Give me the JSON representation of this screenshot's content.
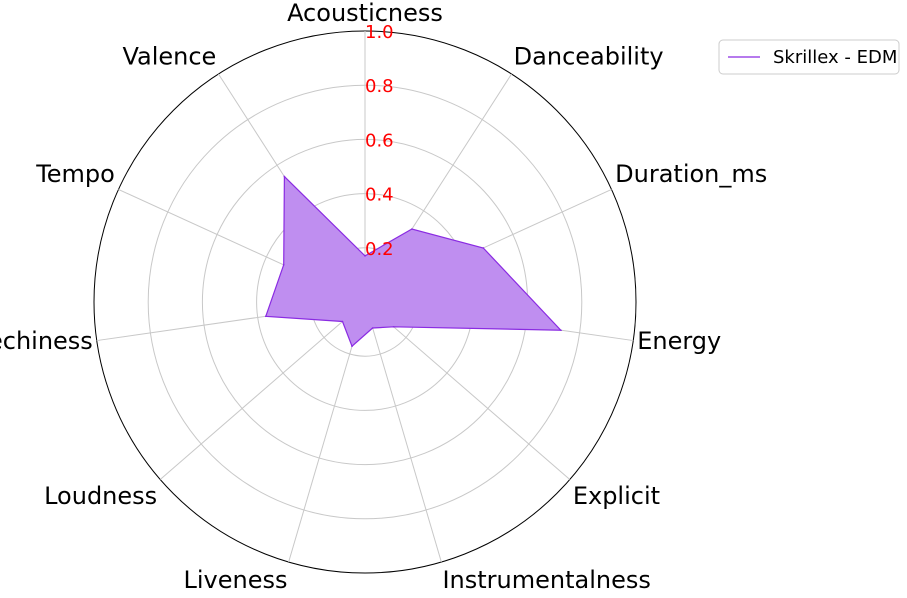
{
  "chart_data": {
    "type": "radar",
    "axes": [
      "Acousticness",
      "Danceability",
      "Duration_ms",
      "Energy",
      "Explicit",
      "Instrumentalness",
      "Liveness",
      "Loudness",
      "Speechiness",
      "Tempo",
      "Valence"
    ],
    "series": [
      {
        "name": "Skrillex - EDM",
        "values": [
          0.17,
          0.32,
          0.48,
          0.73,
          0.14,
          0.1,
          0.17,
          0.11,
          0.37,
          0.33,
          0.55
        ],
        "color": "#8a2be2",
        "fill": "#bf8ef0"
      }
    ],
    "rlim": [
      0,
      1.0
    ],
    "ticks": [
      "0.2",
      "0.4",
      "0.6",
      "0.8",
      "1.0"
    ],
    "tick_values": [
      0.2,
      0.4,
      0.6,
      0.8,
      1.0
    ],
    "tick_color": "#ff0000",
    "grid": true,
    "legend_position": "top-right"
  }
}
